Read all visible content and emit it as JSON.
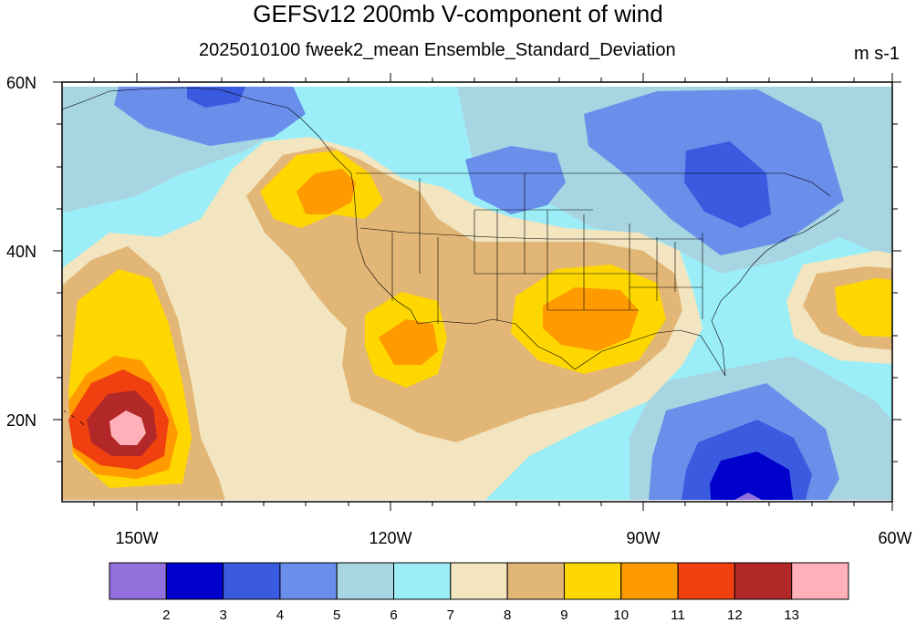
{
  "title": "GEFSv12 200mb V-component of wind",
  "subtitle": "2025010100 fweek2_mean Ensemble_Standard_Deviation",
  "units": "m s-1",
  "axes": {
    "lon_labels": [
      "150W",
      "120W",
      "90W",
      "60W"
    ],
    "lat_labels": [
      "60N",
      "40N",
      "20N"
    ]
  },
  "colorbar": {
    "colors": [
      "#9370DB",
      "#0000CD",
      "#3A5BE0",
      "#6A8FEA",
      "#A8D5E2",
      "#9BEEF7",
      "#F3E5C0",
      "#E2B676",
      "#FFD700",
      "#FF9A00",
      "#F04010",
      "#B22828",
      "#FFB0B8"
    ],
    "labels": [
      "2",
      "3",
      "4",
      "5",
      "6",
      "7",
      "8",
      "9",
      "10",
      "11",
      "12",
      "13"
    ]
  }
}
